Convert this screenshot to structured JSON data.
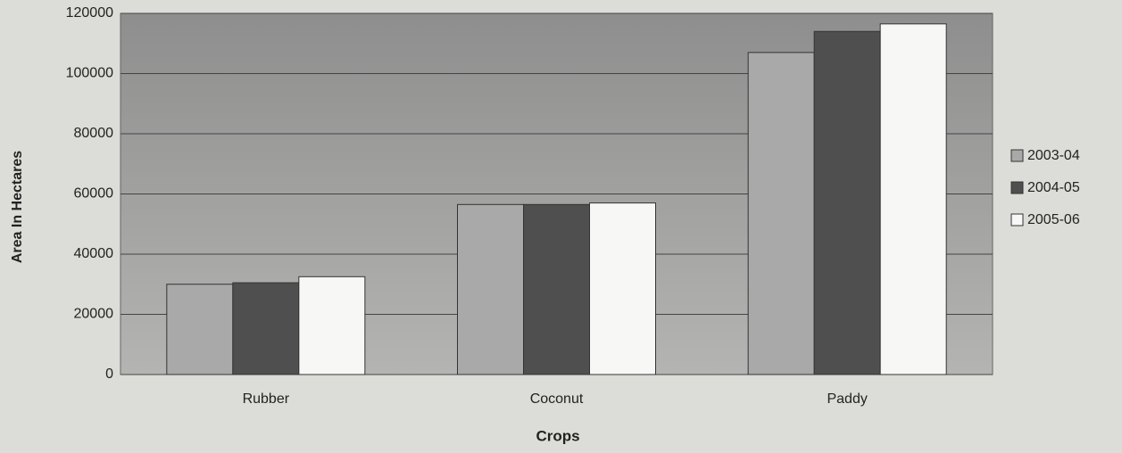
{
  "chart_data": {
    "type": "bar",
    "xlabel": "Crops",
    "ylabel": "Area In Hectares",
    "categories": [
      "Rubber",
      "Coconut",
      "Paddy"
    ],
    "series": [
      {
        "name": "2003-04",
        "color": "#a9a9a9",
        "values": [
          30000,
          56500,
          107000
        ]
      },
      {
        "name": "2004-05",
        "color": "#4f4f4f",
        "values": [
          30500,
          56500,
          114000
        ]
      },
      {
        "name": "2005-06",
        "color": "#f7f7f5",
        "values": [
          32500,
          57000,
          116500
        ]
      }
    ],
    "ylim": [
      0,
      120000
    ],
    "yticks": [
      0,
      20000,
      40000,
      60000,
      80000,
      100000,
      120000
    ],
    "grid": true,
    "legend": "right"
  }
}
